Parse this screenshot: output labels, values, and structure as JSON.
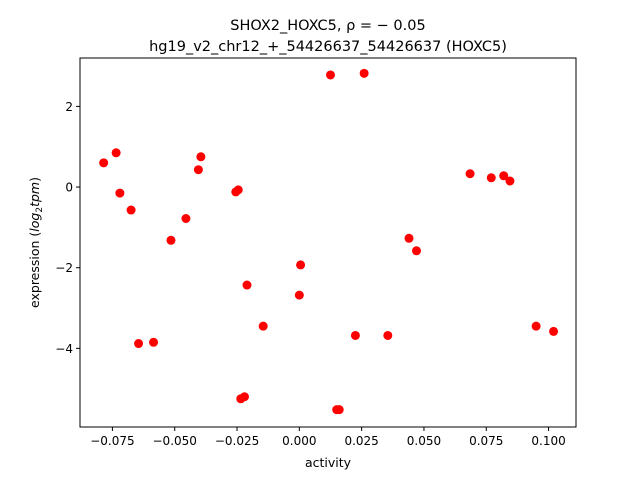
{
  "chart_data": {
    "type": "scatter",
    "title_line1": "SHOX2_HOXC5, ρ = − 0.05",
    "title_line2": "hg19_v2_chr12_+_54426637_54426637 (HOXC5)",
    "xlabel": "activity",
    "ylabel_prefix": "expression (",
    "ylabel_math": "log",
    "ylabel_sub": "2",
    "ylabel_math2": "tpm",
    "ylabel_suffix": ")",
    "xlim": [
      -0.088,
      0.111
    ],
    "ylim": [
      -5.95,
      3.2
    ],
    "x_ticks": [
      -0.075,
      -0.05,
      -0.025,
      0.0,
      0.025,
      0.05,
      0.075,
      0.1
    ],
    "x_tick_labels": [
      "−0.075",
      "−0.050",
      "−0.025",
      "0.000",
      "0.025",
      "0.050",
      "0.075",
      "0.100"
    ],
    "y_ticks": [
      -4,
      -2,
      0,
      2
    ],
    "y_tick_labels": [
      "−4",
      "−2",
      "0",
      "2"
    ],
    "marker_color": "#ff0000",
    "grid": false,
    "points": [
      {
        "x": -0.0785,
        "y": 0.6
      },
      {
        "x": -0.0735,
        "y": 0.85
      },
      {
        "x": -0.072,
        "y": -0.15
      },
      {
        "x": -0.0675,
        "y": -0.57
      },
      {
        "x": -0.0645,
        "y": -3.88
      },
      {
        "x": -0.0585,
        "y": -3.85
      },
      {
        "x": -0.0515,
        "y": -1.32
      },
      {
        "x": -0.0455,
        "y": -0.78
      },
      {
        "x": -0.0405,
        "y": 0.43
      },
      {
        "x": -0.0395,
        "y": 0.75
      },
      {
        "x": -0.0255,
        "y": -0.12
      },
      {
        "x": -0.0245,
        "y": -0.07
      },
      {
        "x": -0.0235,
        "y": -5.25
      },
      {
        "x": -0.022,
        "y": -5.2
      },
      {
        "x": -0.021,
        "y": -2.43
      },
      {
        "x": -0.0145,
        "y": -3.45
      },
      {
        "x": 0.0,
        "y": -2.68
      },
      {
        "x": 0.0005,
        "y": -1.93
      },
      {
        "x": 0.0125,
        "y": 2.78
      },
      {
        "x": 0.015,
        "y": -5.52
      },
      {
        "x": 0.016,
        "y": -5.52
      },
      {
        "x": 0.0225,
        "y": -3.68
      },
      {
        "x": 0.026,
        "y": 2.82
      },
      {
        "x": 0.0355,
        "y": -3.68
      },
      {
        "x": 0.044,
        "y": -1.27
      },
      {
        "x": 0.047,
        "y": -1.58
      },
      {
        "x": 0.0685,
        "y": 0.33
      },
      {
        "x": 0.077,
        "y": 0.23
      },
      {
        "x": 0.082,
        "y": 0.28
      },
      {
        "x": 0.0845,
        "y": 0.15
      },
      {
        "x": 0.095,
        "y": -3.45
      },
      {
        "x": 0.102,
        "y": -3.58
      }
    ]
  }
}
